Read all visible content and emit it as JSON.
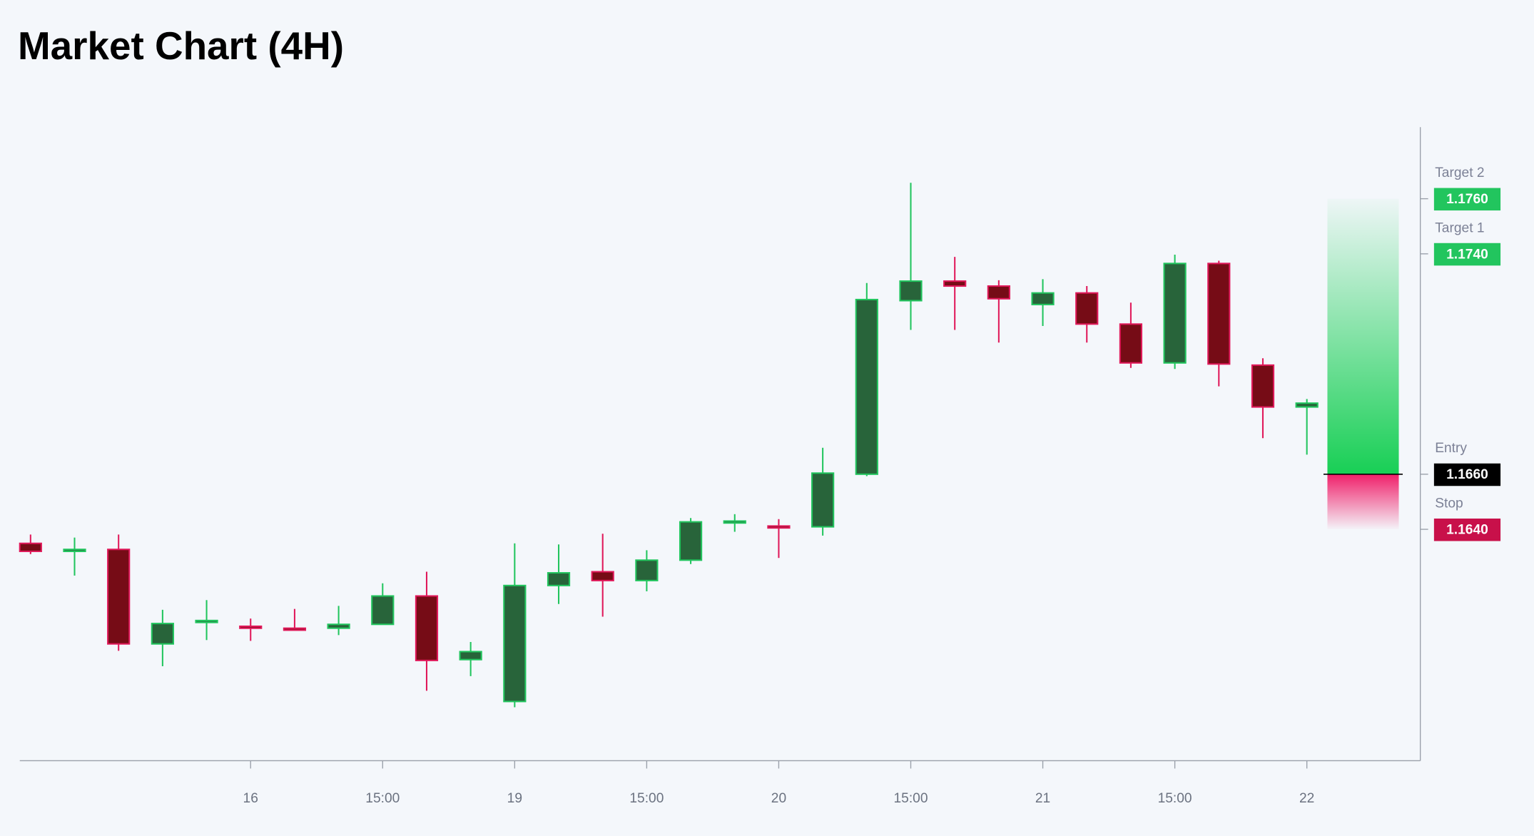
{
  "chart_data": {
    "type": "candlestick",
    "title": "Market Chart (4H)",
    "categories": [
      "",
      "",
      "",
      "",
      "",
      "16",
      "",
      "",
      "15:00",
      "",
      "",
      "19",
      "",
      "",
      "15:00",
      "",
      "",
      "20",
      "",
      "",
      "15:00",
      "",
      "",
      "21",
      "",
      "",
      "15:00",
      "",
      "",
      "22"
    ],
    "open": [
      1.16349,
      1.16324,
      1.16327,
      1.15984,
      1.16062,
      1.16048,
      1.16041,
      1.16041,
      1.16055,
      1.16158,
      1.15927,
      1.15775,
      1.16196,
      1.16246,
      1.16214,
      1.16288,
      1.16423,
      1.16412,
      1.16409,
      1.166,
      1.1723,
      1.17301,
      1.17283,
      1.17216,
      1.17258,
      1.17145,
      1.17004,
      1.17365,
      1.16996,
      1.16844
    ],
    "high": [
      1.16381,
      1.1637,
      1.16381,
      1.16108,
      1.16143,
      1.16076,
      1.16111,
      1.16122,
      1.16204,
      1.16246,
      1.15991,
      1.16349,
      1.16345,
      1.16384,
      1.16324,
      1.16441,
      1.16455,
      1.16437,
      1.16696,
      1.17294,
      1.17658,
      1.17389,
      1.17304,
      1.17308,
      1.17283,
      1.17223,
      1.17397,
      1.17375,
      1.17021,
      1.16873
    ],
    "low": [
      1.1631,
      1.16232,
      1.15959,
      1.15903,
      1.15998,
      1.15995,
      1.16034,
      1.16016,
      1.16055,
      1.15814,
      1.15867,
      1.15754,
      1.16129,
      1.16083,
      1.16175,
      1.16274,
      1.16391,
      1.16296,
      1.16377,
      1.16593,
      1.17124,
      1.17124,
      1.17078,
      1.17138,
      1.17078,
      1.16986,
      1.16982,
      1.16919,
      1.16731,
      1.16671
    ],
    "close": [
      1.1632,
      1.16327,
      1.15984,
      1.16058,
      1.16069,
      1.16041,
      1.16034,
      1.16055,
      1.16158,
      1.15924,
      1.15956,
      1.16196,
      1.16242,
      1.16214,
      1.16288,
      1.16427,
      1.1643,
      1.16405,
      1.16604,
      1.17234,
      1.17301,
      1.17283,
      1.17237,
      1.17258,
      1.17145,
      1.17004,
      1.17365,
      1.17,
      1.16844,
      1.16858
    ],
    "up_color": "#22c55e",
    "up_fill": "#28643a",
    "down_color": "#e0195a",
    "down_fill": "#760c16",
    "ylim": [
      1.1556,
      1.1786
    ],
    "levels": [
      {
        "name": "Target 2",
        "value": 1.176,
        "label": "1.1760",
        "color": "#22c55e"
      },
      {
        "name": "Target 1",
        "value": 1.174,
        "label": "1.1740",
        "color": "#22c55e"
      },
      {
        "name": "Entry",
        "value": 1.166,
        "label": "1.1660",
        "color": "#000000"
      },
      {
        "name": "Stop",
        "value": 1.164,
        "label": "1.1640",
        "color": "#c8104a"
      }
    ]
  }
}
